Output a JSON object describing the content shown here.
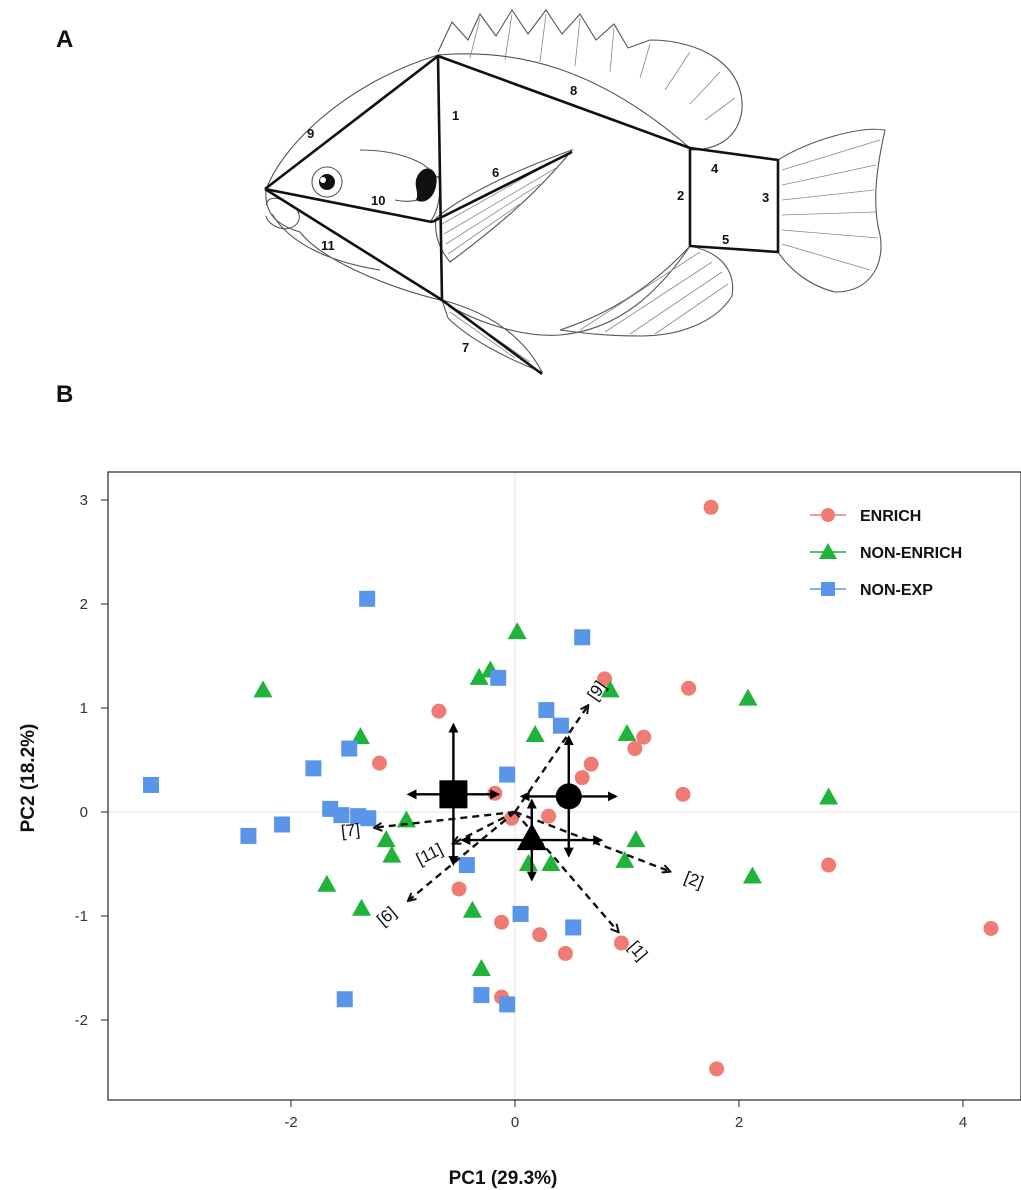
{
  "panels": {
    "a": "A",
    "b": "B"
  },
  "truss_labels": [
    "1",
    "2",
    "3",
    "4",
    "5",
    "6",
    "7",
    "8",
    "9",
    "10",
    "11"
  ],
  "colors": {
    "ENRICH": "#f07b72",
    "NON-ENRICH": "#1fb33a",
    "NON-EXP": "#5b95ea",
    "centroid": "#000000"
  },
  "chart_data": {
    "type": "scatter",
    "title": "",
    "xlabel": "PC1 (29.3%)",
    "ylabel": "PC2 (18.2%)",
    "xlim": [
      -3.6,
      4.6
    ],
    "ylim": [
      -2.75,
      3.2
    ],
    "x_ticks": [
      -2,
      0,
      2,
      4
    ],
    "y_ticks": [
      -2,
      -1,
      0,
      1,
      2,
      3
    ],
    "x_tick_labels": [
      "-2",
      "0",
      "2",
      "4"
    ],
    "y_tick_labels": [
      "-2",
      "-1",
      "0",
      "1",
      "2",
      "3"
    ],
    "grid": false,
    "zero_lines": true,
    "legend": {
      "position": "top-right",
      "entries": [
        "ENRICH",
        "NON-ENRICH",
        "NON-EXP"
      ]
    },
    "series": [
      {
        "name": "ENRICH",
        "marker": "circle",
        "points": [
          [
            1.75,
            2.93
          ],
          [
            0.8,
            1.28
          ],
          [
            1.55,
            1.19
          ],
          [
            -0.68,
            0.97
          ],
          [
            1.15,
            0.72
          ],
          [
            1.07,
            0.61
          ],
          [
            0.68,
            0.46
          ],
          [
            0.6,
            0.33
          ],
          [
            -1.21,
            0.47
          ],
          [
            1.5,
            0.17
          ],
          [
            -0.18,
            0.18
          ],
          [
            -0.03,
            -0.06
          ],
          [
            0.3,
            -0.04
          ],
          [
            2.8,
            -0.51
          ],
          [
            -0.5,
            -0.74
          ],
          [
            -0.12,
            -1.06
          ],
          [
            0.22,
            -1.18
          ],
          [
            0.95,
            -1.26
          ],
          [
            0.45,
            -1.36
          ],
          [
            4.25,
            -1.12
          ],
          [
            -0.12,
            -1.78
          ],
          [
            1.8,
            -2.47
          ]
        ]
      },
      {
        "name": "NON-ENRICH",
        "marker": "triangle",
        "points": [
          [
            0.02,
            1.73
          ],
          [
            -0.22,
            1.36
          ],
          [
            -0.32,
            1.29
          ],
          [
            0.85,
            1.17
          ],
          [
            2.08,
            1.09
          ],
          [
            -2.25,
            1.17
          ],
          [
            -1.38,
            0.72
          ],
          [
            0.18,
            0.74
          ],
          [
            1.0,
            0.75
          ],
          [
            2.8,
            0.14
          ],
          [
            -0.97,
            -0.08
          ],
          [
            -1.15,
            -0.27
          ],
          [
            -1.1,
            -0.42
          ],
          [
            1.08,
            -0.27
          ],
          [
            0.98,
            -0.47
          ],
          [
            0.12,
            -0.5
          ],
          [
            0.32,
            -0.5
          ],
          [
            2.12,
            -0.62
          ],
          [
            -1.68,
            -0.7
          ],
          [
            -1.37,
            -0.93
          ],
          [
            -0.38,
            -0.95
          ],
          [
            -0.3,
            -1.51
          ]
        ]
      },
      {
        "name": "NON-EXP",
        "marker": "square",
        "points": [
          [
            -1.32,
            2.05
          ],
          [
            0.6,
            1.68
          ],
          [
            -0.15,
            1.29
          ],
          [
            0.28,
            0.98
          ],
          [
            0.41,
            0.83
          ],
          [
            -1.48,
            0.61
          ],
          [
            -1.8,
            0.42
          ],
          [
            -0.07,
            0.36
          ],
          [
            -3.25,
            0.26
          ],
          [
            -1.65,
            0.03
          ],
          [
            -1.55,
            -0.03
          ],
          [
            -1.4,
            -0.04
          ],
          [
            -1.31,
            -0.06
          ],
          [
            -2.08,
            -0.12
          ],
          [
            -2.38,
            -0.23
          ],
          [
            -0.43,
            -0.51
          ],
          [
            0.05,
            -0.98
          ],
          [
            0.52,
            -1.11
          ],
          [
            -1.52,
            -1.8
          ],
          [
            -0.3,
            -1.76
          ],
          [
            -0.07,
            -1.85
          ]
        ]
      }
    ],
    "centroids": [
      {
        "group": "NON-EXP",
        "marker": "square",
        "x": -0.55,
        "y": 0.17,
        "x_err": 0.4,
        "y_err": 0.67
      },
      {
        "group": "ENRICH",
        "marker": "circle",
        "x": 0.48,
        "y": 0.15,
        "x_err": 0.42,
        "y_err": 0.57
      },
      {
        "group": "NON-ENRICH",
        "marker": "triangle",
        "x": 0.15,
        "y": -0.27,
        "x_err": 0.62,
        "y_err": 0.38
      }
    ],
    "loadings": [
      {
        "label": "[9]",
        "x": 0.65,
        "y": 1.02
      },
      {
        "label": "[7]",
        "x": -1.25,
        "y": -0.15
      },
      {
        "label": "[11]",
        "x": -0.55,
        "y": -0.3
      },
      {
        "label": "[6]",
        "x": -0.95,
        "y": -0.85
      },
      {
        "label": "[2]",
        "x": 1.38,
        "y": -0.57
      },
      {
        "label": "[1]",
        "x": 0.92,
        "y": -1.15
      }
    ]
  }
}
